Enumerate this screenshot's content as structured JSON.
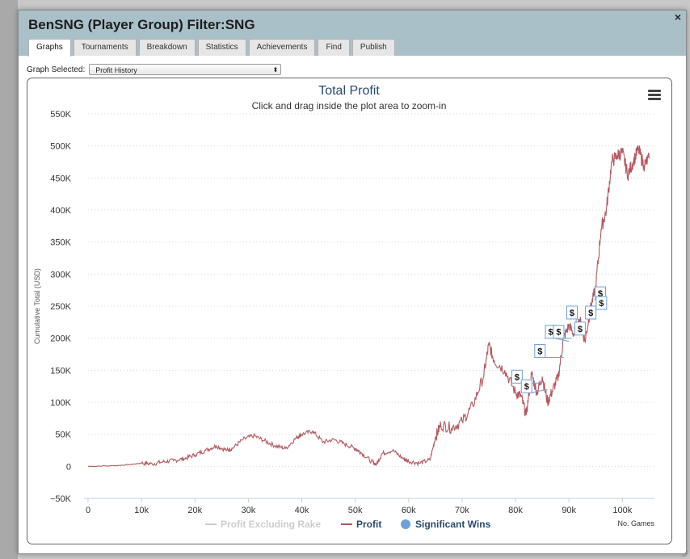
{
  "window": {
    "title": "BenSNG (Player Group) Filter:SNG",
    "close_label": "×"
  },
  "tabs": [
    {
      "label": "Graphs",
      "active": true
    },
    {
      "label": "Tournaments",
      "active": false
    },
    {
      "label": "Breakdown",
      "active": false
    },
    {
      "label": "Statistics",
      "active": false
    },
    {
      "label": "Achievements",
      "active": false
    },
    {
      "label": "Find",
      "active": false
    },
    {
      "label": "Publish",
      "active": false
    }
  ],
  "selector": {
    "label": "Graph Selected:",
    "value": "Profit History"
  },
  "colors": {
    "profit_line": "#b5585f",
    "excluding_rake_line": "#cccccc",
    "significant_wins": "#6ca2d9",
    "title_color": "#274b6d"
  },
  "chart_data": {
    "type": "line",
    "title": "Total Profit",
    "subtitle": "Click and drag inside the plot area to zoom-in",
    "ylabel": "Cumulative Total (USD)",
    "xlabel": "No. Games",
    "xlim": [
      0,
      106000
    ],
    "ylim": [
      -50000,
      550000
    ],
    "x_ticks": [
      0,
      10000,
      20000,
      30000,
      40000,
      50000,
      60000,
      70000,
      80000,
      90000,
      100000
    ],
    "x_tick_labels": [
      "0",
      "10k",
      "20k",
      "30k",
      "40k",
      "50k",
      "60k",
      "70k",
      "80k",
      "90k",
      "100k"
    ],
    "y_ticks": [
      -50000,
      0,
      50000,
      100000,
      150000,
      200000,
      250000,
      300000,
      350000,
      400000,
      450000,
      500000,
      550000
    ],
    "y_tick_labels": [
      "−50K",
      "0",
      "50K",
      "100K",
      "150K",
      "200K",
      "250K",
      "300K",
      "350K",
      "400K",
      "450K",
      "500K",
      "550K"
    ],
    "grid": true,
    "legend": [
      {
        "name": "Profit Excluding Rake",
        "visible": false
      },
      {
        "name": "Profit",
        "visible": true
      },
      {
        "name": "Significant Wins",
        "visible": true
      }
    ],
    "legend_position": "bottom-center",
    "series": [
      {
        "name": "Profit",
        "x": [
          0,
          5000,
          8000,
          10000,
          12000,
          14000,
          16000,
          18000,
          20000,
          22000,
          24000,
          26000,
          27000,
          29000,
          31000,
          33000,
          35000,
          37000,
          39000,
          40000,
          42000,
          44000,
          46000,
          48000,
          50000,
          51000,
          53000,
          54000,
          55000,
          57000,
          59000,
          60000,
          62000,
          64000,
          65000,
          66000,
          68000,
          70000,
          72000,
          74000,
          75000,
          76000,
          78000,
          80000,
          81000,
          82000,
          83000,
          84000,
          85000,
          86000,
          87000,
          88000,
          89000,
          90000,
          91000,
          92000,
          93000,
          94000,
          95000,
          96000,
          97000,
          98000,
          99000,
          100000,
          101000,
          102000,
          103000,
          104000,
          105000
        ],
        "y": [
          0,
          1000,
          3000,
          5000,
          4000,
          7000,
          9000,
          12000,
          18000,
          25000,
          32000,
          25000,
          28000,
          42000,
          48000,
          40000,
          32000,
          28000,
          45000,
          50000,
          55000,
          38000,
          42000,
          35000,
          28000,
          22000,
          8000,
          3000,
          20000,
          25000,
          12000,
          8000,
          5000,
          10000,
          45000,
          65000,
          60000,
          70000,
          95000,
          140000,
          190000,
          165000,
          150000,
          115000,
          110000,
          80000,
          145000,
          115000,
          140000,
          100000,
          120000,
          140000,
          200000,
          220000,
          205000,
          230000,
          195000,
          245000,
          280000,
          370000,
          400000,
          475000,
          485000,
          490000,
          455000,
          475000,
          495000,
          470000,
          480000
        ]
      }
    ],
    "significant_wins": [
      {
        "label": "$",
        "x": 80200,
        "y": 140000
      },
      {
        "label": "$",
        "x": 82000,
        "y": 125000
      },
      {
        "label": "$",
        "x": 84500,
        "y": 180000
      },
      {
        "label": "$",
        "x": 86500,
        "y": 210000
      },
      {
        "label": "$",
        "x": 88000,
        "y": 210000
      },
      {
        "label": "$",
        "x": 90500,
        "y": 240000
      },
      {
        "label": "$",
        "x": 92000,
        "y": 215000
      },
      {
        "label": "$",
        "x": 94000,
        "y": 240000
      },
      {
        "label": "$",
        "x": 95800,
        "y": 270000
      },
      {
        "label": "$",
        "x": 96000,
        "y": 255000
      }
    ]
  }
}
